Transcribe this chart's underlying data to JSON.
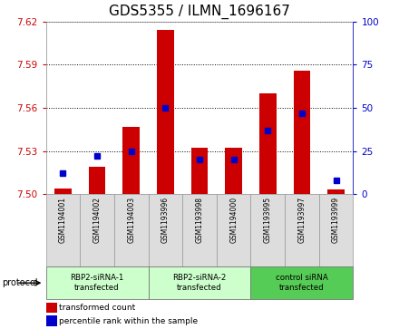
{
  "title": "GDS5355 / ILMN_1696167",
  "samples": [
    "GSM1194001",
    "GSM1194002",
    "GSM1194003",
    "GSM1193996",
    "GSM1193998",
    "GSM1194000",
    "GSM1193995",
    "GSM1193997",
    "GSM1193999"
  ],
  "red_values": [
    7.504,
    7.519,
    7.547,
    7.614,
    7.532,
    7.532,
    7.57,
    7.586,
    7.503
  ],
  "blue_values_pct": [
    12,
    22,
    25,
    50,
    20,
    20,
    37,
    47,
    8
  ],
  "ylim_left": [
    7.5,
    7.62
  ],
  "ylim_right": [
    0,
    100
  ],
  "yticks_left": [
    7.5,
    7.53,
    7.56,
    7.59,
    7.62
  ],
  "yticks_right": [
    0,
    25,
    50,
    75,
    100
  ],
  "red_color": "#cc0000",
  "blue_color": "#0000cc",
  "bar_width": 0.5,
  "blue_marker_size": 4,
  "protocols": [
    {
      "label": "RBP2-siRNA-1\ntransfected",
      "start": 0,
      "end": 3,
      "color": "#ccffcc"
    },
    {
      "label": "RBP2-siRNA-2\ntransfected",
      "start": 3,
      "end": 6,
      "color": "#ccffcc"
    },
    {
      "label": "control siRNA\ntransfected",
      "start": 6,
      "end": 9,
      "color": "#55cc55"
    }
  ],
  "protocol_label": "protocol",
  "legend_red": "transformed count",
  "legend_blue": "percentile rank within the sample",
  "bg_color": "#dddddd",
  "plot_bg": "#ffffff",
  "grid_color": "#000000",
  "title_fontsize": 11,
  "tick_fontsize": 7.5,
  "label_fontsize": 7
}
